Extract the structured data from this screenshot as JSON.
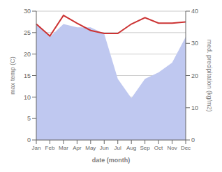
{
  "chart_data": {
    "type": "line",
    "xlabel": "date (month)",
    "ylabel": "max temp (C)",
    "y2label": "med. precipitation  (kg/m2)",
    "categories": [
      "Jan",
      "Feb",
      "Mar",
      "Apr",
      "May",
      "Jun",
      "Jul",
      "Aug",
      "Sep",
      "Oct",
      "Nov",
      "Dec"
    ],
    "series": [
      {
        "type": "area",
        "axis": "y2",
        "color": "#bfc8f0",
        "values": [
          36,
          32,
          36,
          35,
          35,
          33,
          19,
          13,
          19,
          21,
          24,
          32
        ]
      },
      {
        "type": "line",
        "axis": "y",
        "color": "#cc3333",
        "values": [
          27.0,
          24.2,
          29.0,
          27.2,
          25.5,
          24.8,
          24.8,
          27.0,
          28.5,
          27.2,
          27.2,
          27.5
        ]
      }
    ],
    "ylim": [
      0,
      30
    ],
    "yticks": [
      0,
      5,
      10,
      15,
      20,
      25,
      30
    ],
    "y2lim": [
      0,
      40
    ],
    "y2ticks": [
      0,
      10,
      20,
      30,
      40
    ],
    "grid": true
  }
}
